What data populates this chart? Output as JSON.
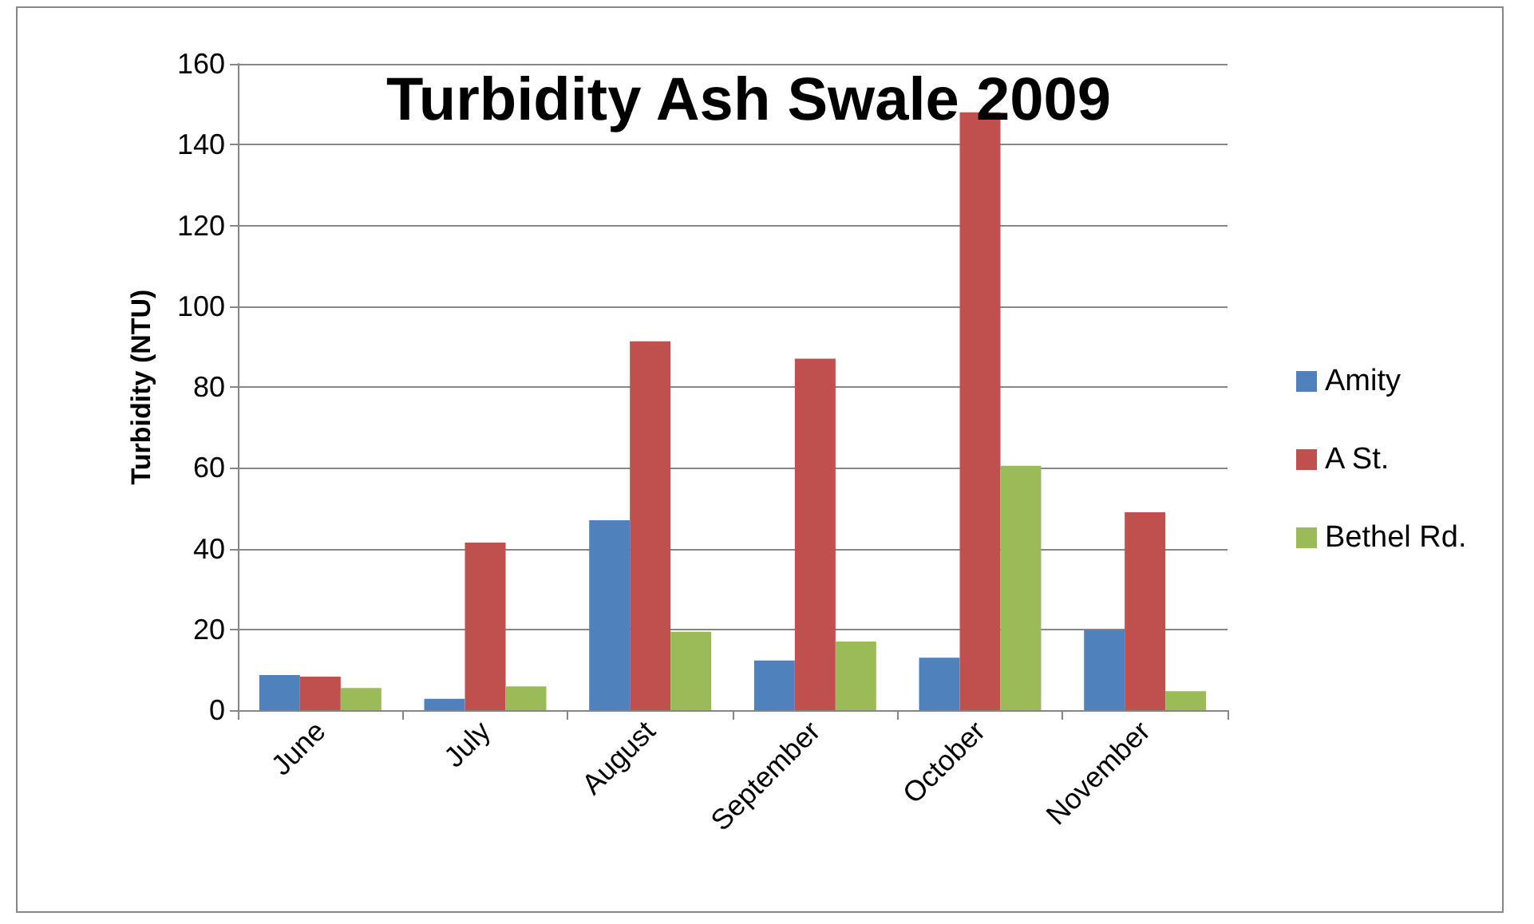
{
  "chart_data": {
    "type": "bar",
    "title": "Turbidity Ash Swale 2009",
    "ylabel": "Turbidity (NTU)",
    "categories": [
      "June",
      "July",
      "August",
      "September",
      "October",
      "November"
    ],
    "series": [
      {
        "name": "Amity",
        "color": "#4f81bd",
        "values": [
          8.7,
          2.8,
          47,
          12.3,
          13,
          19.8
        ]
      },
      {
        "name": "A St.",
        "color": "#c0504d",
        "values": [
          8.3,
          41.5,
          91.3,
          87,
          148,
          49
        ]
      },
      {
        "name": "Bethel Rd.",
        "color": "#9bbb59",
        "values": [
          5.5,
          5.9,
          19.4,
          17,
          60.5,
          4.7
        ]
      }
    ],
    "ylim": [
      0,
      160
    ],
    "yticks": [
      0,
      20,
      40,
      60,
      80,
      100,
      120,
      140,
      160
    ],
    "grid": "y",
    "legend": "right"
  }
}
